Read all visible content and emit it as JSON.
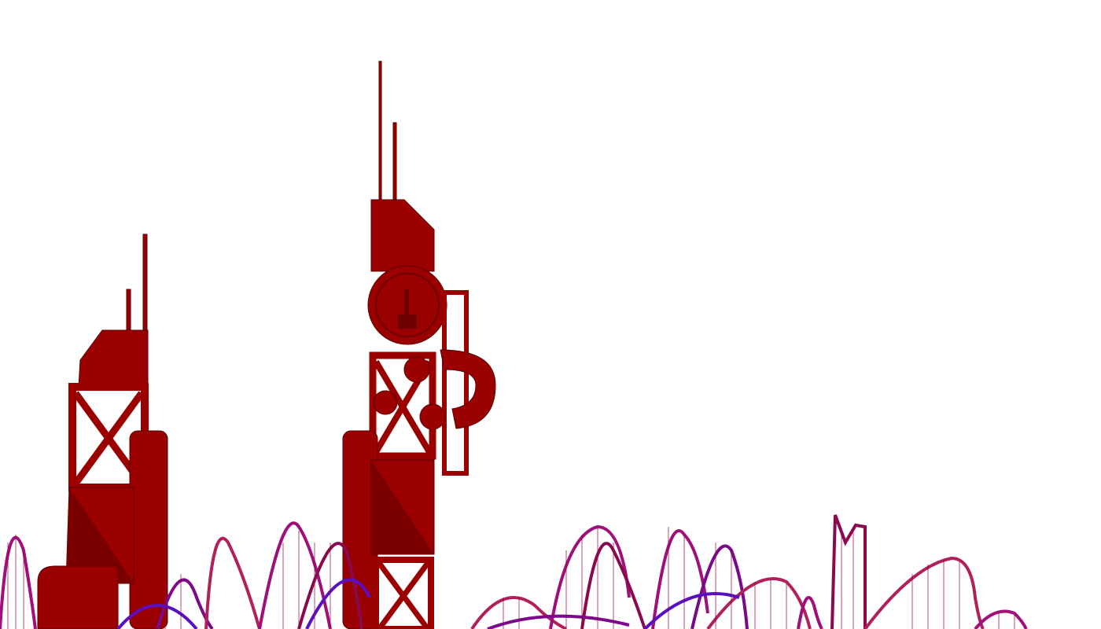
{
  "scene": {
    "background_color": "#ffffff",
    "tower_color": "#9a0000",
    "tower_dark_color": "#6e0000",
    "tower_outline_color": "#5a0000",
    "tangle_colors": [
      "#a0107a",
      "#7a0a8a",
      "#5a10c0",
      "#b0205a",
      "#8a0a50"
    ],
    "objects": [
      "left-tower",
      "center-tower",
      "coil-tangle"
    ]
  }
}
